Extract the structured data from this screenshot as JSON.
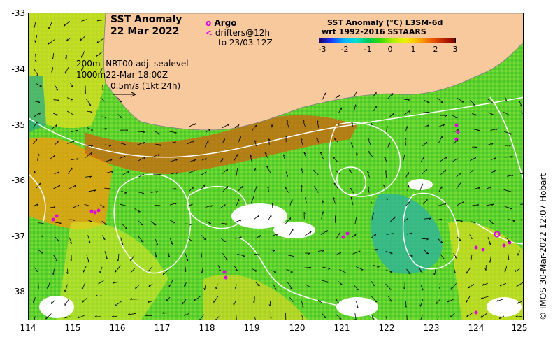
{
  "title": {
    "line1": "SST Anomaly",
    "line2": "22 Mar 2022"
  },
  "legend": {
    "argo_label": "Argo",
    "argo_symbol": "o",
    "drifter_symbol": "<",
    "drifters_line1": "drifters@12h",
    "drifters_line2": "to 23/03 12Z",
    "marker_color": "#e000e0"
  },
  "contour_info": {
    "line1": "200m  NRT00 adj. sealevel",
    "line2": "1000m22-Mar 18:00Z",
    "line3": "0.5m/s (1kt 24h)"
  },
  "colorbar": {
    "title1": "SST Anomaly (°C) L3SM-6d",
    "title2": "wrt 1992-2016 SSTAARS",
    "ticks": [
      "-3",
      "-2",
      "-1",
      "0",
      "1",
      "2",
      "3"
    ]
  },
  "axes": {
    "lat_ticks": [
      "-33",
      "-34",
      "-35",
      "-36",
      "-37",
      "-38"
    ],
    "lon_ticks": [
      "114",
      "115",
      "116",
      "117",
      "118",
      "119",
      "120",
      "121",
      "122",
      "123",
      "124",
      "125"
    ]
  },
  "credit": "© IMOS 30-Mar-2022 12:07 Hobart",
  "colors": {
    "land": "#f9c99e",
    "ocean_base": "#5cd22e",
    "contour": "#ffffff",
    "arrow": "#000000"
  }
}
